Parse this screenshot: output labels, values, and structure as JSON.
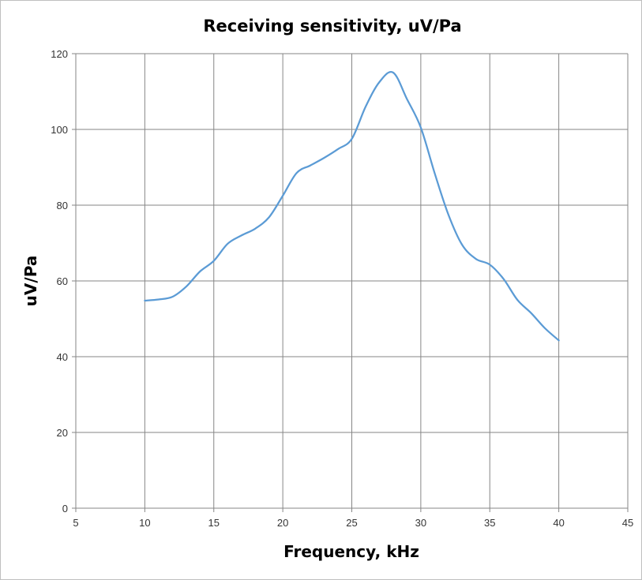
{
  "chart_data": {
    "type": "line",
    "title": "Receiving sensitivity, uV/Pa",
    "xlabel": "Frequency, kHz",
    "ylabel": "uV/Pa",
    "xlim": [
      5,
      45
    ],
    "ylim": [
      0,
      120
    ],
    "x_ticks": [
      "5",
      "10",
      "15",
      "20",
      "25",
      "30",
      "35",
      "40",
      "45"
    ],
    "y_ticks": [
      "0",
      "20",
      "40",
      "60",
      "80",
      "100",
      "120"
    ],
    "grid": true,
    "legend": "none",
    "series": [
      {
        "color": "#5b9bd5",
        "x": [
          10,
          11,
          12,
          13,
          14,
          15,
          16,
          17,
          18,
          19,
          20,
          21,
          22,
          23,
          24,
          25,
          26,
          27,
          28,
          29,
          30,
          31,
          32,
          33,
          34,
          35,
          36,
          37,
          38,
          39,
          40
        ],
        "y": [
          54.8,
          55.1,
          55.8,
          58.5,
          62.5,
          65.3,
          69.8,
          72.0,
          73.8,
          76.8,
          82.5,
          88.5,
          90.5,
          92.5,
          94.8,
          97.5,
          106.0,
          112.5,
          115.0,
          108.0,
          100.5,
          88.5,
          77.5,
          69.5,
          65.8,
          64.3,
          60.5,
          55.0,
          51.5,
          47.5,
          44.3
        ]
      }
    ]
  }
}
